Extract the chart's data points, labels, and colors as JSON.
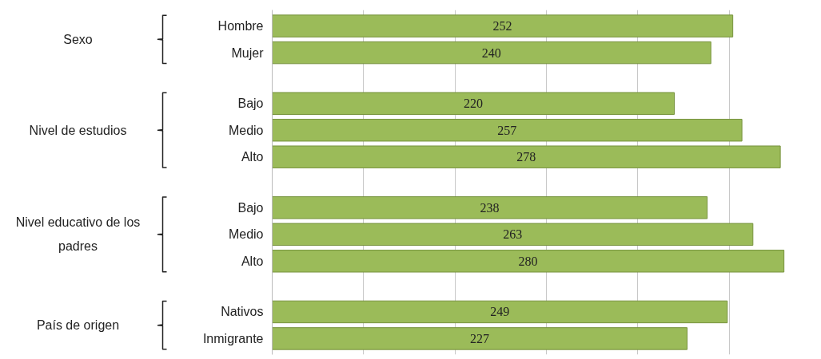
{
  "chart_data": {
    "type": "bar",
    "orientation": "horizontal",
    "categories": [
      "Hombre",
      "Mujer",
      "Bajo",
      "Medio",
      "Alto",
      "Bajo",
      "Medio",
      "Alto",
      "Nativos",
      "Inmigrante"
    ],
    "values": [
      252,
      240,
      220,
      257,
      278,
      238,
      263,
      280,
      249,
      227
    ],
    "color": "#9bbb59",
    "data_labels": true,
    "xticks": [
      {
        "value": 0,
        "label": null
      },
      {
        "value": 50,
        "label": null
      },
      {
        "value": 100,
        "label": null
      },
      {
        "value": 150,
        "label": null
      },
      {
        "value": 200,
        "label": null
      },
      {
        "value": 250,
        "label": null
      }
    ],
    "grid": "x",
    "tick_labels": "y",
    "annotations": [
      "Sexo",
      "Nivel de estudios",
      "Nivel educativo de los padres",
      "País de origen"
    ]
  }
}
